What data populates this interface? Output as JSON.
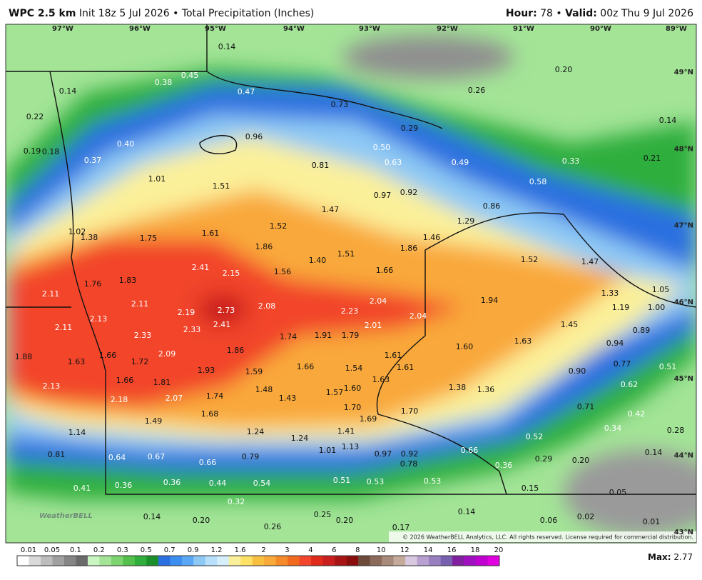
{
  "header": {
    "model": "WPC 2.5 km",
    "subtitle": "Init 18z 5 Jul 2026 • Total Precipitation (Inches)",
    "hour_label": "Hour:",
    "hour": "78 •",
    "valid_label": "Valid:",
    "valid": "00z Thu 9 Jul 2026"
  },
  "map": {
    "lon_labels": [
      "97°W",
      "96°W",
      "95°W",
      "94°W",
      "93°W",
      "92°W",
      "91°W",
      "90°W",
      "89°W"
    ],
    "lat_labels": [
      "49°N",
      "48°N",
      "47°N",
      "46°N",
      "45°N",
      "44°N",
      "43°N"
    ],
    "values": [
      "0.14",
      "0.45",
      "0.38",
      "0.14",
      "0.47",
      "0.73",
      "0.29",
      "0.26",
      "0.20",
      "0.22",
      "0.96",
      "0.40",
      "0.19",
      "0.18",
      "0.37",
      "0.50",
      "0.81",
      "0.63",
      "0.49",
      "0.33",
      "0.14",
      "0.21",
      "1.01",
      "1.51",
      "0.97",
      "0.92",
      "0.58",
      "0.86",
      "1.47",
      "1.29",
      "1.52",
      "1.02",
      "1.38",
      "1.75",
      "1.61",
      "1.46",
      "1.86",
      "1.86",
      "1.40",
      "1.51",
      "1.52",
      "1.47",
      "2.41",
      "2.15",
      "1.56",
      "1.66",
      "1.83",
      "1.76",
      "2.11",
      "1.33",
      "1.05",
      "2.11",
      "2.19",
      "2.73",
      "2.08",
      "2.23",
      "2.04",
      "2.04",
      "1.94",
      "1.19",
      "1.00",
      "2.13",
      "2.11",
      "2.41",
      "2.33",
      "2.33",
      "1.74",
      "1.91",
      "1.79",
      "2.01",
      "1.45",
      "0.89",
      "1.63",
      "1.60",
      "0.94",
      "1.88",
      "1.66",
      "1.63",
      "1.72",
      "2.09",
      "1.86",
      "1.61",
      "1.61",
      "1.66",
      "1.54",
      "1.93",
      "1.59",
      "0.77",
      "0.90",
      "0.51",
      "1.66",
      "1.81",
      "1.63",
      "1.48",
      "1.60",
      "1.57",
      "1.38",
      "1.36",
      "0.62",
      "2.13",
      "1.74",
      "1.43",
      "2.18",
      "2.07",
      "1.70",
      "1.70",
      "0.71",
      "0.42",
      "1.68",
      "1.69",
      "1.49",
      "1.14",
      "1.24",
      "1.41",
      "0.34",
      "0.28",
      "1.24",
      "0.52",
      "1.13",
      "1.01",
      "0.81",
      "0.64",
      "0.67",
      "0.79",
      "0.97",
      "0.92",
      "0.66",
      "0.14",
      "0.29",
      "0.20",
      "0.66",
      "0.78",
      "0.36",
      "0.41",
      "0.36",
      "0.36",
      "0.44",
      "0.54",
      "0.51",
      "0.53",
      "0.53",
      "0.15",
      "0.05",
      "0.32",
      "0.14",
      "0.20",
      "0.25",
      "0.20",
      "0.14",
      "0.06",
      "0.02",
      "0.26",
      "0.17",
      "0.01"
    ],
    "logo": "WeatherBELL",
    "copyright": "© 2026 WeatherBELL Analytics, LLC. All rights reserved. License required for commercial distribution."
  },
  "legend": {
    "ticks": [
      "0.01",
      "0.05",
      "0.1",
      "0.2",
      "0.3",
      "0.5",
      "0.7",
      "0.9",
      "1.2",
      "1.6",
      "2",
      "3",
      "4",
      "6",
      "8",
      "10",
      "12",
      "14",
      "16",
      "18",
      "20"
    ]
  },
  "footer": {
    "max_label": "Max:",
    "max": "2.77"
  }
}
